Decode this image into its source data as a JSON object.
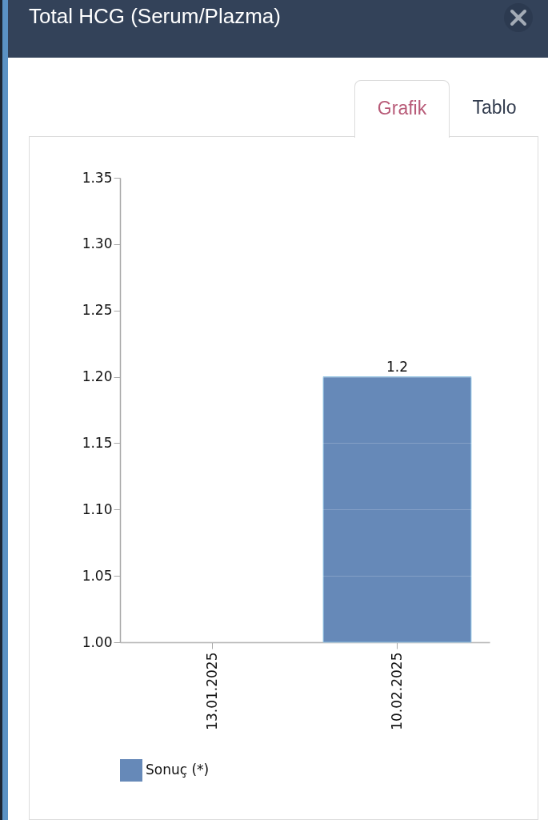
{
  "chart_data": {
    "type": "bar",
    "title": "Total HCG (Serum/Plazma)",
    "annotations": [
      "Grafik",
      "Tablo"
    ],
    "categories": [
      "13.01.2025",
      "10.02.2025"
    ],
    "series": [
      {
        "name": "Sonuç (*)",
        "color": "#6689b8",
        "values": [
          null,
          1.2
        ]
      }
    ],
    "ylim": [
      1.0,
      1.35
    ],
    "yticks": [
      {
        "value": 1.0,
        "label": "1.00"
      },
      1.05,
      {
        "value": 1.1,
        "label": "1.10"
      },
      1.15,
      {
        "value": 1.2,
        "label": "1.20"
      },
      1.25,
      {
        "value": 1.3,
        "label": "1.30"
      },
      1.35
    ],
    "grid": "y",
    "legend": "bottom left",
    "data_labels": true
  }
}
